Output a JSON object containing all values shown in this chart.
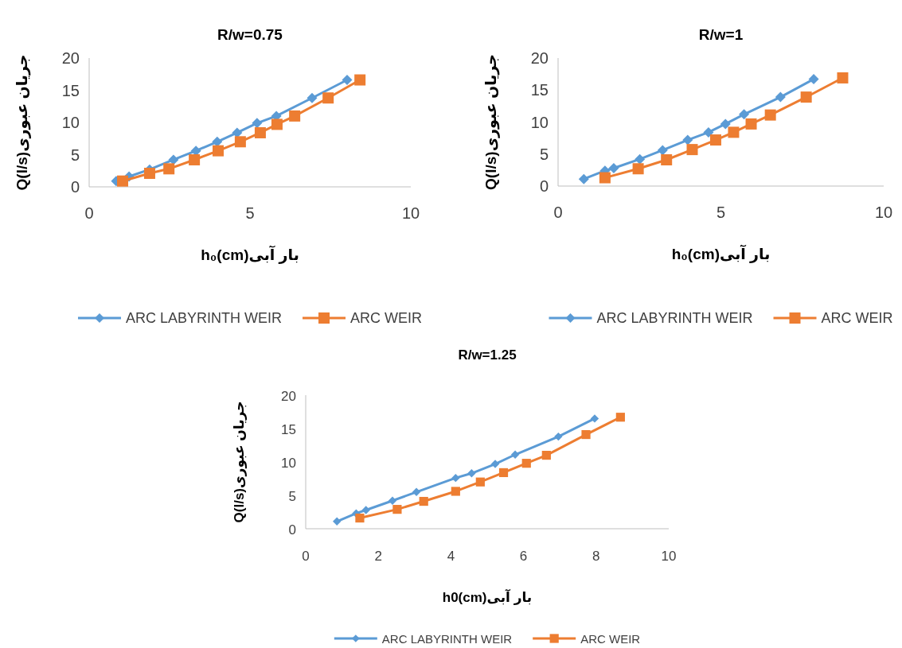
{
  "chart_data": [
    {
      "type": "line",
      "title": "R/w=0.75",
      "xlabel": "h₀(cm)بار آبی",
      "ylabel": "Q(l/s)جریان عبوری",
      "xlim": [
        0,
        10
      ],
      "xticks": [
        0,
        5,
        10
      ],
      "ylim": [
        0,
        20
      ],
      "yticks": [
        0,
        5,
        10,
        15,
        20
      ],
      "grid": false,
      "legend": "bottom",
      "line_style": "solid",
      "series": [
        {
          "name": "ARC LABYRINTH WEIR",
          "color": "#5b9bd5",
          "marker": "diamond",
          "x": [
            0.84,
            1.24,
            1.88,
            2.62,
            3.32,
            3.98,
            4.6,
            5.22,
            5.82,
            6.93,
            8.02
          ],
          "values": [
            0.9,
            1.6,
            2.7,
            4.2,
            5.6,
            7.0,
            8.4,
            9.9,
            11.0,
            13.8,
            16.6
          ]
        },
        {
          "name": "ARC WEIR",
          "color": "#ed7d31",
          "marker": "square",
          "x": [
            1.04,
            1.88,
            2.48,
            3.27,
            4.01,
            4.7,
            5.32,
            5.84,
            6.39,
            7.43,
            8.42
          ],
          "values": [
            0.9,
            2.1,
            2.8,
            4.2,
            5.6,
            7.0,
            8.4,
            9.7,
            11.0,
            13.8,
            16.6
          ]
        }
      ]
    },
    {
      "type": "line",
      "title": "R/w=1",
      "xlabel": "h₀(cm)بار آبی",
      "ylabel": "Q(l/s)جریان عبوری",
      "xlim": [
        0,
        10
      ],
      "xticks": [
        0,
        5,
        10
      ],
      "ylim": [
        0,
        20
      ],
      "yticks": [
        0,
        5,
        10,
        15,
        20
      ],
      "grid": false,
      "legend": "bottom",
      "line_style": "solid",
      "series": [
        {
          "name": "ARC LABYRINTH WEIR",
          "color": "#5b9bd5",
          "marker": "diamond",
          "x": [
            0.79,
            1.44,
            1.71,
            2.51,
            3.21,
            3.98,
            4.62,
            5.14,
            5.71,
            6.83,
            7.85
          ],
          "values": [
            1.1,
            2.4,
            2.8,
            4.2,
            5.6,
            7.2,
            8.4,
            9.7,
            11.2,
            13.9,
            16.7
          ]
        },
        {
          "name": "ARC WEIR",
          "color": "#ed7d31",
          "marker": "square",
          "x": [
            1.44,
            2.46,
            3.33,
            4.12,
            4.84,
            5.39,
            5.93,
            6.52,
            7.62,
            8.74
          ],
          "values": [
            1.3,
            2.7,
            4.1,
            5.7,
            7.2,
            8.4,
            9.7,
            11.1,
            13.9,
            16.9
          ]
        }
      ]
    },
    {
      "type": "line",
      "title": "R/w=1.25",
      "xlabel": "h0(cm)بار آبی",
      "ylabel": "Q(l/s)جریان عبوری",
      "xlim": [
        0,
        10
      ],
      "xticks": [
        0,
        2,
        4,
        6,
        8,
        10
      ],
      "ylim": [
        0,
        20
      ],
      "yticks": [
        0,
        5,
        10,
        15,
        20
      ],
      "grid": false,
      "legend": "bottom",
      "line_style": "solid",
      "series": [
        {
          "name": "ARC LABYRINTH WEIR",
          "color": "#5b9bd5",
          "marker": "diamond",
          "x": [
            0.86,
            1.39,
            1.66,
            2.39,
            3.05,
            4.13,
            4.57,
            5.22,
            5.77,
            6.96,
            7.96
          ],
          "values": [
            1.1,
            2.3,
            2.8,
            4.2,
            5.5,
            7.6,
            8.3,
            9.7,
            11.1,
            13.8,
            16.5
          ]
        },
        {
          "name": "ARC WEIR",
          "color": "#ed7d31",
          "marker": "square",
          "x": [
            1.49,
            2.52,
            3.25,
            4.13,
            4.81,
            5.45,
            6.08,
            6.63,
            7.72,
            8.67
          ],
          "values": [
            1.6,
            2.9,
            4.1,
            5.6,
            7.0,
            8.4,
            9.8,
            11.0,
            14.1,
            16.7
          ]
        }
      ]
    }
  ]
}
